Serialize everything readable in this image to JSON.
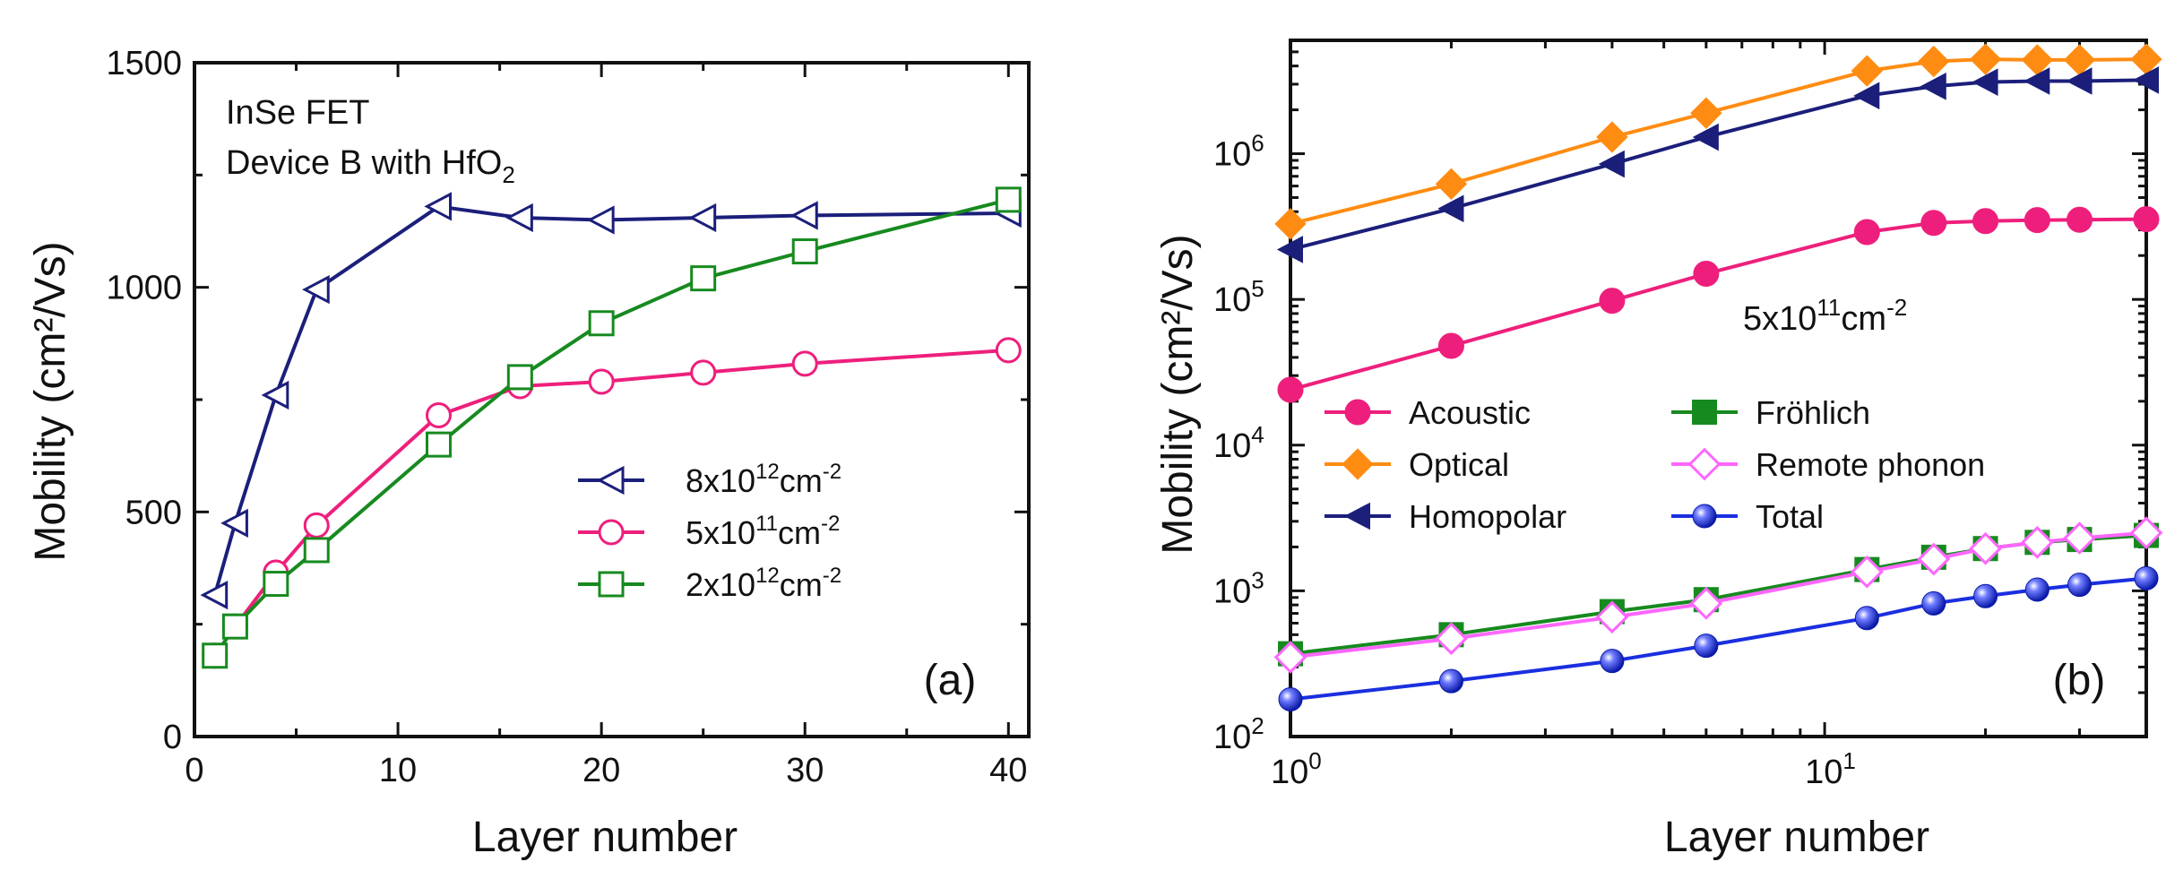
{
  "colors": {
    "navy": "#1b1f7a",
    "pink": "#ee1f7c",
    "green": "#178a1f",
    "orange": "#ff8c12",
    "violet": "#ff66ff",
    "blue": "#1a2fe0"
  },
  "panel_a": {
    "xlabel": "Layer number",
    "ylabel": "Mobility (cm²/Vs)",
    "tag": "(a)",
    "note_line1": "InSe FET",
    "note_line2_pre": "Device B with HfO",
    "note_line2_sub": "2",
    "legend": [
      {
        "mantissa": "8x10",
        "exp": "12",
        "unit": "cm",
        "unit_exp": "-2"
      },
      {
        "mantissa": "5x10",
        "exp": "11",
        "unit": "cm",
        "unit_exp": "-2"
      },
      {
        "mantissa": "2x10",
        "exp": "12",
        "unit": "cm",
        "unit_exp": "-2"
      }
    ]
  },
  "panel_b": {
    "xlabel": "Layer number",
    "ylabel": "Mobility (cm²/Vs)",
    "tag": "(b)",
    "density": {
      "mantissa": "5x10",
      "exp": "11",
      "unit": "cm",
      "unit_exp": "-2"
    },
    "legend": [
      "Acoustic",
      "Optical",
      "Homopolar",
      "Fröhlich",
      "Remote phonon",
      "Total"
    ]
  },
  "chart_data": [
    {
      "type": "line",
      "title": "",
      "xlabel": "Layer number",
      "ylabel": "Mobility (cm2/Vs)",
      "xlim": [
        0,
        41
      ],
      "ylim": [
        0,
        1500
      ],
      "xticks": [
        0,
        10,
        20,
        30,
        40
      ],
      "yticks": [
        0,
        500,
        1000,
        1500
      ],
      "x": [
        1,
        2,
        4,
        6,
        12,
        16,
        20,
        25,
        30,
        40
      ],
      "series": [
        {
          "name": "8x10^12 cm^-2",
          "marker": "triangle-left",
          "color": "#1b1f7a",
          "values": [
            315,
            475,
            760,
            995,
            1180,
            1155,
            1150,
            1155,
            1160,
            1165
          ]
        },
        {
          "name": "5x10^11 cm^-2",
          "marker": "circle",
          "color": "#ee1f7c",
          "values": [
            180,
            245,
            365,
            470,
            715,
            780,
            790,
            810,
            830,
            860
          ]
        },
        {
          "name": "2x10^12 cm^-2",
          "marker": "square",
          "color": "#178a1f",
          "values": [
            180,
            245,
            340,
            415,
            650,
            800,
            920,
            1020,
            1080,
            1195
          ]
        }
      ],
      "annotations": [
        "InSe FET",
        "Device B with HfO2",
        "(a)"
      ]
    },
    {
      "type": "line",
      "title": "",
      "xlabel": "Layer number",
      "ylabel": "Mobility (cm2/Vs)",
      "xscale": "log",
      "yscale": "log",
      "xlim": [
        1,
        40
      ],
      "ylim": [
        100,
        6000000
      ],
      "xticks": [
        1,
        10
      ],
      "yticks": [
        100,
        1000,
        10000,
        100000,
        1000000
      ],
      "x": [
        1,
        2,
        4,
        6,
        12,
        16,
        20,
        25,
        30,
        40
      ],
      "series": [
        {
          "name": "Acoustic",
          "marker": "circle",
          "color": "#ee1f7c",
          "values": [
            24000,
            48000,
            98000,
            150000,
            290000,
            335000,
            345000,
            350000,
            352000,
            355000
          ]
        },
        {
          "name": "Optical",
          "marker": "diamond",
          "color": "#ff8c12",
          "values": [
            330000,
            620000,
            1300000,
            1900000,
            3700000,
            4300000,
            4450000,
            4400000,
            4400000,
            4450000
          ]
        },
        {
          "name": "Homopolar",
          "marker": "triangle-left",
          "color": "#1b1f7a",
          "values": [
            220000,
            420000,
            850000,
            1300000,
            2500000,
            2900000,
            3100000,
            3150000,
            3150000,
            3200000
          ]
        },
        {
          "name": "Fröhlich",
          "marker": "square",
          "color": "#178a1f",
          "values": [
            370,
            500,
            720,
            870,
            1400,
            1700,
            1950,
            2150,
            2250,
            2400
          ]
        },
        {
          "name": "Remote phonon",
          "marker": "diamond-open",
          "color": "#ff66ff",
          "values": [
            350,
            470,
            660,
            820,
            1350,
            1650,
            1950,
            2150,
            2300,
            2500
          ]
        },
        {
          "name": "Total",
          "marker": "sphere",
          "color": "#1a2fe0",
          "values": [
            180,
            240,
            330,
            420,
            650,
            820,
            920,
            1020,
            1100,
            1220
          ]
        }
      ],
      "annotations": [
        "5x10^11 cm^-2",
        "(b)"
      ]
    }
  ]
}
